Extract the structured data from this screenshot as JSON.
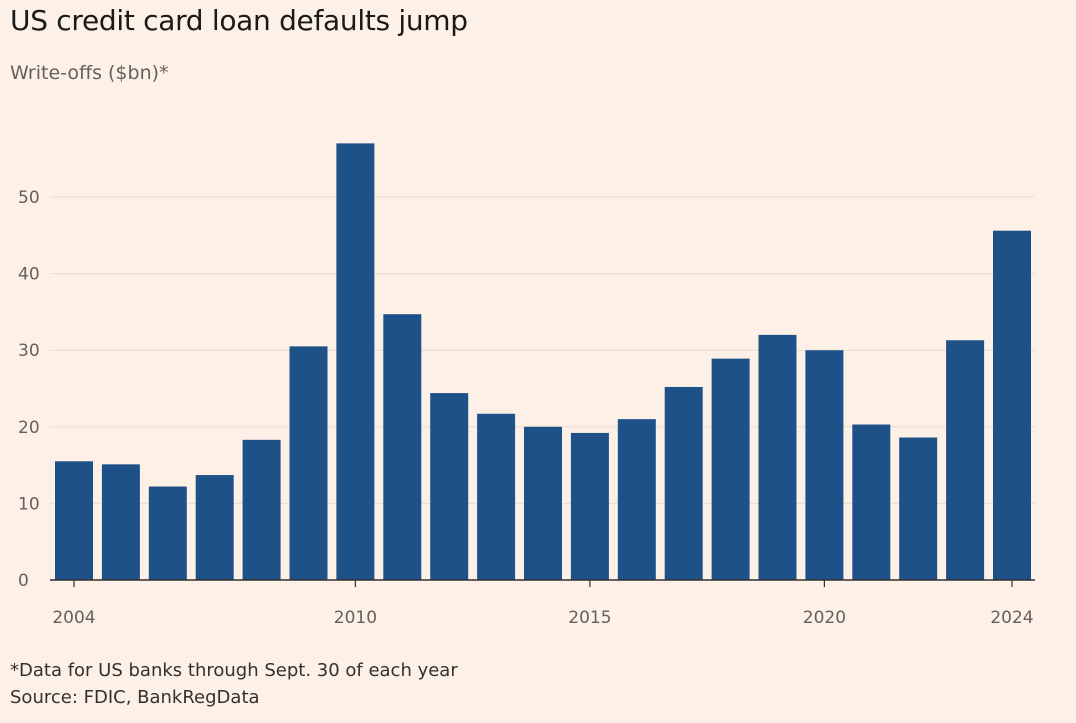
{
  "header": {
    "title": "US credit card loan defaults jump",
    "subtitle": "Write-offs ($bn)*"
  },
  "footer": {
    "footnote": "*Data for US banks through Sept. 30 of each year",
    "source": "Source: FDIC, BankRegData"
  },
  "colors": {
    "bar": "#1f5189",
    "grid": "#e9ddd2",
    "axis": "#33302e",
    "background": "#fdf1e7"
  },
  "chart_data": {
    "type": "bar",
    "title": "US credit card loan defaults jump",
    "ylabel": "Write-offs ($bn)*",
    "xlabel": "",
    "categories": [
      2004,
      2005,
      2006,
      2007,
      2008,
      2009,
      2010,
      2011,
      2012,
      2013,
      2014,
      2015,
      2016,
      2017,
      2018,
      2019,
      2020,
      2021,
      2022,
      2023,
      2024
    ],
    "values": [
      15.5,
      15.1,
      12.2,
      13.7,
      18.3,
      30.5,
      57.0,
      34.7,
      24.4,
      21.7,
      20.0,
      19.2,
      21.0,
      25.2,
      28.9,
      32.0,
      30.0,
      20.3,
      18.6,
      31.3,
      45.6
    ],
    "yticks": [
      0,
      10,
      20,
      30,
      40,
      50
    ],
    "ytick_labels": [
      "0",
      "10",
      "20",
      "30",
      "40",
      "50"
    ],
    "xtick_labels": [
      {
        "year": 2004,
        "label": "2004"
      },
      {
        "year": 2010,
        "label": "2010"
      },
      {
        "year": 2015,
        "label": "2015"
      },
      {
        "year": 2020,
        "label": "2020"
      },
      {
        "year": 2024,
        "label": "2024"
      }
    ],
    "ylim": [
      0,
      60
    ],
    "grid": true
  }
}
